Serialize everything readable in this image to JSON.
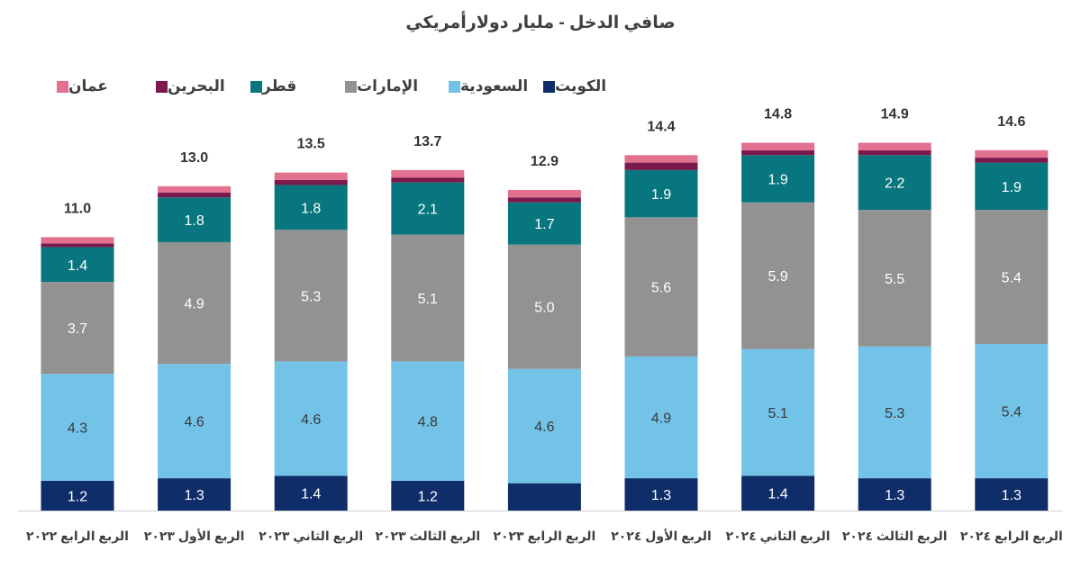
{
  "chart_data": {
    "type": "bar",
    "stacked": true,
    "title": "صافي الدخل - مليار دولارأمريكي",
    "categories": [
      "الربع الرابع ٢٠٢٢",
      "الربع الأول ٢٠٢٣",
      "الربع الثاني ٢٠٢٣",
      "الربع الثالث ٢٠٢٣",
      "الربع الرابع ٢٠٢٣",
      "الربع الأول ٢٠٢٤",
      "الربع الثاني ٢٠٢٤",
      "الربع الثالث ٢٠٢٤",
      "الربع الرابع ٢٠٢٤"
    ],
    "series": [
      {
        "name": "الكويت",
        "color": "#0f2d69",
        "label_color": "#ffffff",
        "values": [
          1.2,
          1.3,
          1.4,
          1.2,
          1.1,
          1.3,
          1.4,
          1.3,
          1.3
        ],
        "labels": [
          "1.2",
          "1.3",
          "1.4",
          "1.2",
          "",
          "1.3",
          "1.4",
          "1.3",
          "1.3"
        ]
      },
      {
        "name": "السعودية",
        "color": "#73c3e8",
        "label_color": "#3a3a3a",
        "values": [
          4.3,
          4.6,
          4.6,
          4.8,
          4.6,
          4.9,
          5.1,
          5.3,
          5.4
        ],
        "labels": [
          "4.3",
          "4.6",
          "4.6",
          "4.8",
          "4.6",
          "4.9",
          "5.1",
          "5.3",
          "5.4"
        ]
      },
      {
        "name": "الإمارات",
        "color": "#929292",
        "label_color": "#ffffff",
        "values": [
          3.7,
          4.9,
          5.3,
          5.1,
          5.0,
          5.6,
          5.9,
          5.5,
          5.4
        ],
        "labels": [
          "3.7",
          "4.9",
          "5.3",
          "5.1",
          "5.0",
          "5.6",
          "5.9",
          "5.5",
          "5.4"
        ]
      },
      {
        "name": "قطر",
        "color": "#08767e",
        "label_color": "#ffffff",
        "values": [
          1.4,
          1.8,
          1.8,
          2.1,
          1.7,
          1.9,
          1.9,
          2.2,
          1.9
        ],
        "labels": [
          "1.4",
          "1.8",
          "1.8",
          "2.1",
          "1.7",
          "1.9",
          "1.9",
          "2.2",
          "1.9"
        ]
      },
      {
        "name": "البحرين",
        "color": "#7a1a4c",
        "label_color": "#ffffff",
        "values": [
          0.15,
          0.2,
          0.2,
          0.2,
          0.2,
          0.3,
          0.2,
          0.2,
          0.2
        ],
        "labels": [
          "",
          "",
          "",
          "",
          "",
          "",
          "",
          "",
          ""
        ]
      },
      {
        "name": "عمان",
        "color": "#e2708f",
        "label_color": "#ffffff",
        "values": [
          0.25,
          0.25,
          0.3,
          0.3,
          0.3,
          0.3,
          0.3,
          0.3,
          0.3
        ],
        "labels": [
          "",
          "",
          "",
          "",
          "",
          "",
          "",
          "",
          ""
        ]
      }
    ],
    "totals": [
      "11.0",
      "13.0",
      "13.5",
      "13.7",
      "12.9",
      "14.4",
      "14.8",
      "14.9",
      "14.6"
    ],
    "ylim": [
      0,
      16
    ],
    "grid": false,
    "legend": "top-left"
  }
}
